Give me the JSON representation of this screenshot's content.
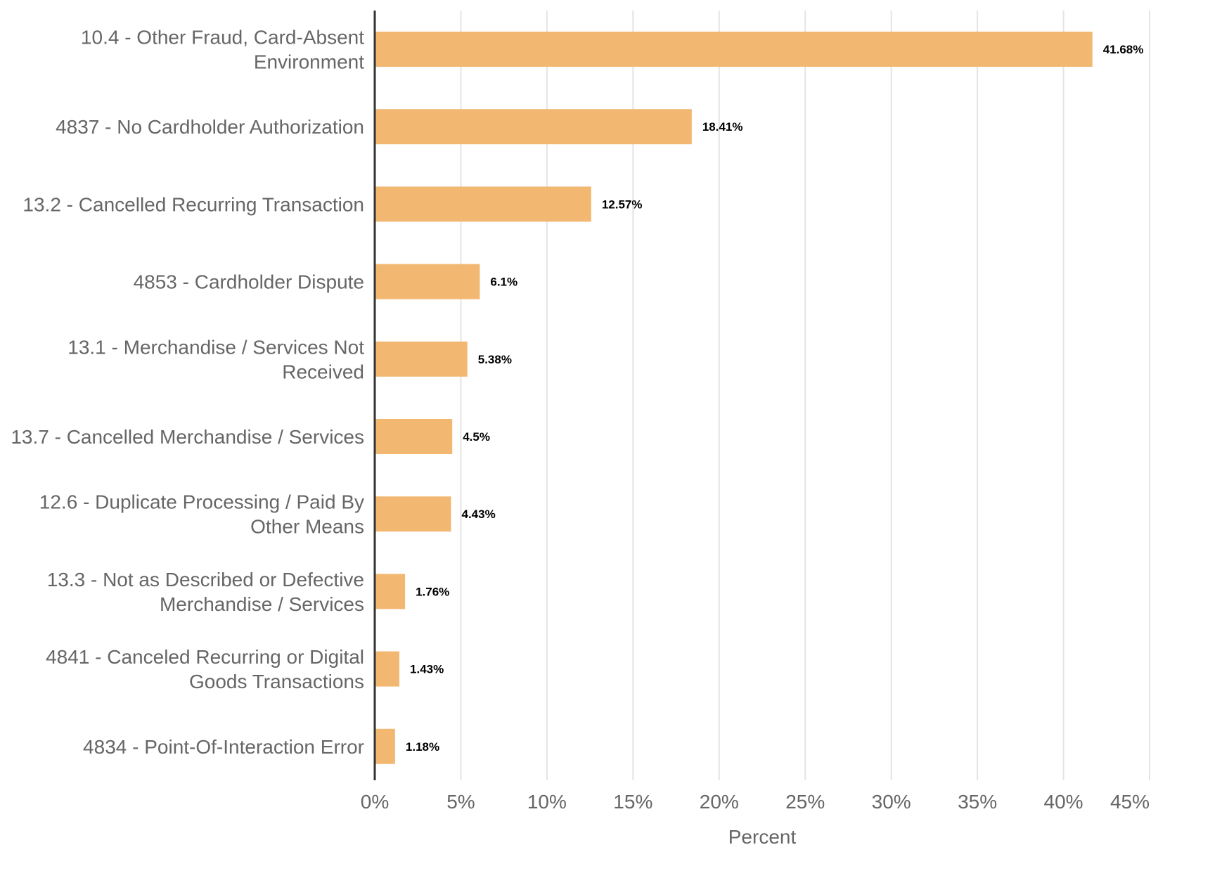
{
  "chart_data": {
    "type": "bar",
    "orientation": "horizontal",
    "title": "",
    "xlabel": "Percent",
    "ylabel": "",
    "xlim": [
      0,
      45
    ],
    "x_ticks": [
      0,
      5,
      10,
      15,
      20,
      25,
      30,
      35,
      40,
      45
    ],
    "x_tick_labels": [
      "0%",
      "5%",
      "10%",
      "15%",
      "20%",
      "25%",
      "30%",
      "35%",
      "40%",
      "45%"
    ],
    "grid": "vertical",
    "bar_color": "#F2B872",
    "axis_color": "#333333",
    "grid_color": "#e4e4e4",
    "label_color": "#666666",
    "categories": [
      [
        "10.4 - Other Fraud, Card-Absent",
        "Environment"
      ],
      [
        "4837 - No Cardholder Authorization"
      ],
      [
        "13.2 - Cancelled Recurring Transaction"
      ],
      [
        "4853 - Cardholder Dispute"
      ],
      [
        "13.1 - Merchandise / Services Not",
        "Received"
      ],
      [
        "13.7 - Cancelled Merchandise / Services"
      ],
      [
        "12.6 - Duplicate Processing / Paid By",
        "Other Means"
      ],
      [
        "13.3 - Not as Described or Defective",
        "Merchandise / Services"
      ],
      [
        "4841 - Canceled Recurring or Digital",
        "Goods Transactions"
      ],
      [
        "4834 - Point-Of-Interaction Error"
      ]
    ],
    "values": [
      41.68,
      18.41,
      12.57,
      6.1,
      5.38,
      4.5,
      4.43,
      1.76,
      1.43,
      1.18
    ],
    "value_labels": [
      "41.68%",
      "18.41%",
      "12.57%",
      "6.1%",
      "5.38%",
      "4.5%",
      "4.43%",
      "1.76%",
      "1.43%",
      "1.18%"
    ]
  }
}
